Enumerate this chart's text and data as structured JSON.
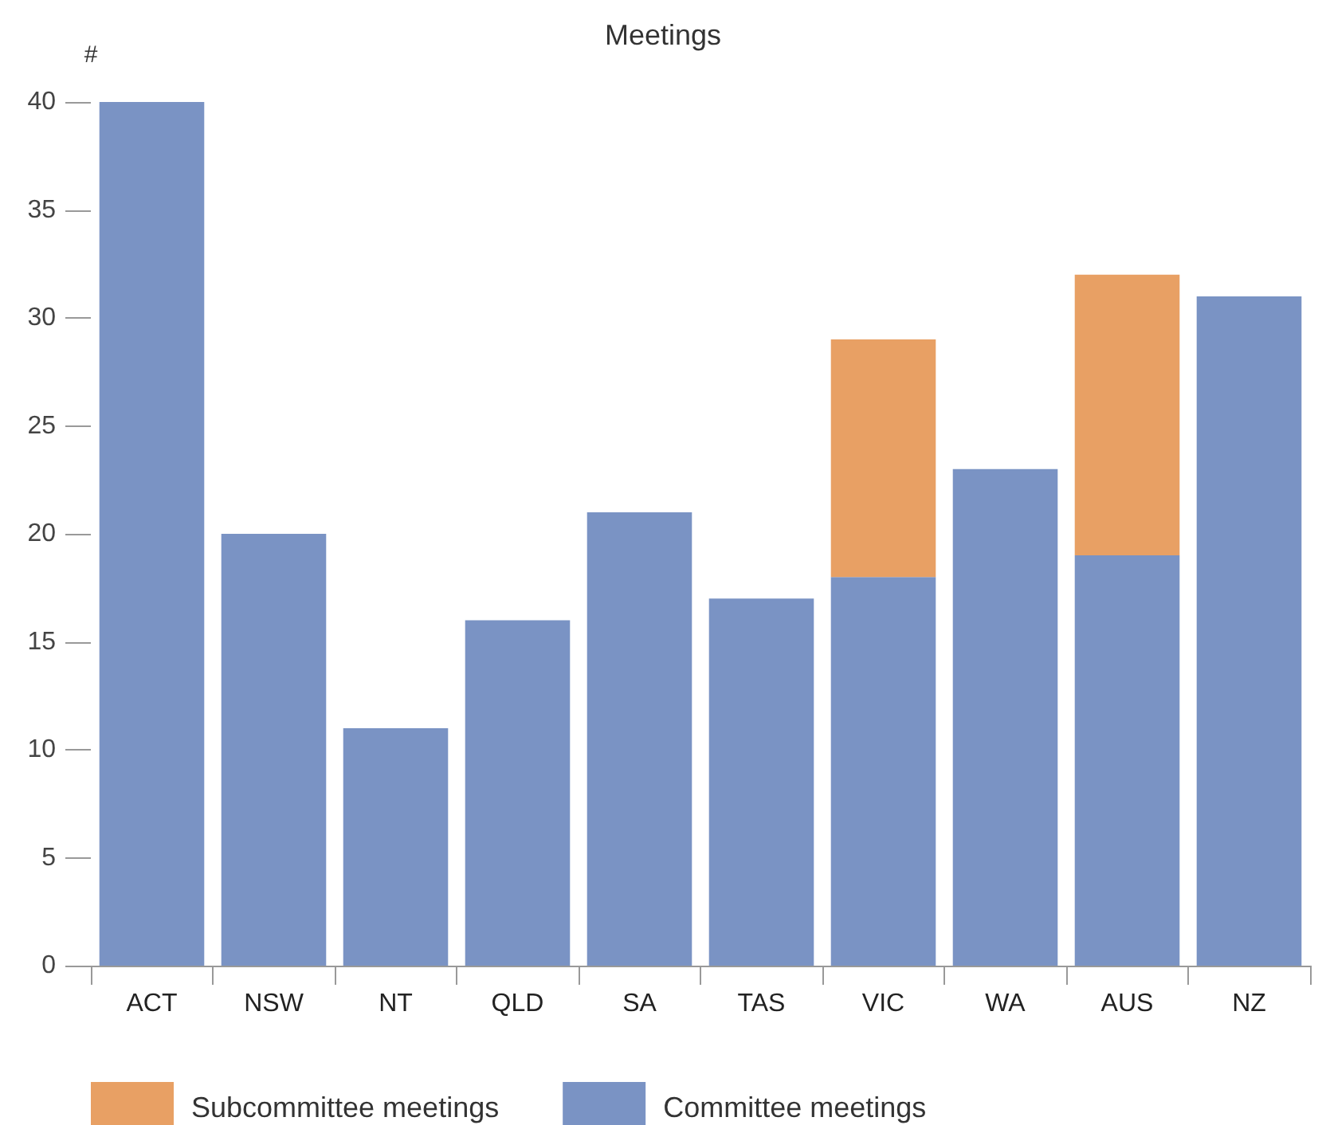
{
  "chart_data": {
    "type": "bar",
    "title": "Meetings",
    "ylabel": "#",
    "categories": [
      "ACT",
      "NSW",
      "NT",
      "QLD",
      "SA",
      "TAS",
      "VIC",
      "WA",
      "AUS",
      "NZ"
    ],
    "series": [
      {
        "name": "Committee meetings",
        "color": "#7a93c4",
        "values": [
          40,
          20,
          11,
          16,
          21,
          17,
          18,
          23,
          19,
          31
        ]
      },
      {
        "name": "Subcommittee meetings",
        "color": "#e8a064",
        "values": [
          null,
          null,
          null,
          null,
          null,
          null,
          11,
          null,
          13,
          null
        ]
      }
    ],
    "stacked": true,
    "ylim": [
      0,
      40
    ],
    "yticks": [
      0,
      5,
      10,
      15,
      20,
      25,
      30,
      35,
      40
    ],
    "grid": false,
    "legend": "bottom left"
  }
}
